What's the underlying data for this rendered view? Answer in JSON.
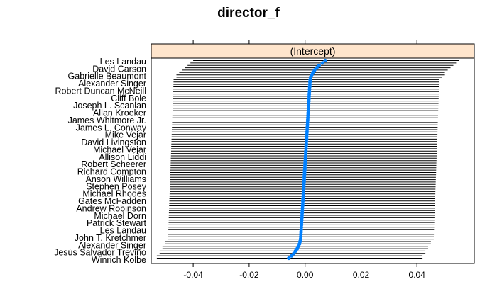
{
  "chart_data": {
    "type": "dotplot",
    "title": "director_f",
    "panel_label": "(Intercept)",
    "xlim": [
      -0.055,
      0.0605
    ],
    "xticks": [
      -0.04,
      -0.02,
      0.0,
      0.02,
      0.04
    ],
    "xtick_labels": [
      "-0.04",
      "-0.02",
      "0.00",
      "0.02",
      "0.04"
    ],
    "grid": false,
    "colors": {
      "point": "#0080ff",
      "interval": "#000000",
      "strip": "#ffe5cc",
      "frame": "#000000"
    },
    "visible_labels": [
      "Les Landau",
      "David Carson",
      "Gabrielle Beaumont",
      "Alexander Singer",
      "Robert Duncan McNeill",
      "Cliff Bole",
      "Joseph L. Scanlan",
      "Allan Kroeker",
      "James Whitmore Jr.",
      "James L. Conway",
      "Mike Vejar",
      "David Livingston",
      "Michael Vejar",
      "Allison Liddi",
      "Robert Scheerer",
      "Richard Compton",
      "Anson Williams",
      "Stephen Posey",
      "Michael Rhodes",
      "Gates McFadden",
      "Andrew Robinson",
      "Michael Dorn",
      "Patrick Stewart",
      "Les Landau",
      "John T. Kretchmer",
      "Alexander Singer",
      "Jesús Salvador Treviño",
      "Winrich Kolbe"
    ],
    "n_levels": 84,
    "estimates_first": [
      0.0072,
      0.0062,
      0.005,
      0.0042,
      0.0034,
      0.0028,
      0.0024,
      0.002
    ],
    "estimates_first_lower": [
      -0.04,
      -0.041,
      -0.042,
      -0.043,
      -0.044,
      -0.045,
      -0.046,
      -0.046
    ],
    "estimates_first_upper": [
      0.055,
      0.054,
      0.053,
      0.052,
      0.051,
      0.05,
      0.05,
      0.049
    ],
    "estimates_last": [
      -0.0018,
      -0.002,
      -0.0024,
      -0.0028,
      -0.0034,
      -0.004,
      -0.0048,
      -0.0058
    ],
    "estimates_last_lower": [
      -0.05,
      -0.05,
      -0.051,
      -0.051,
      -0.052,
      -0.052,
      -0.053,
      -0.053
    ],
    "estimates_last_upper": [
      0.045,
      0.045,
      0.044,
      0.044,
      0.043,
      0.043,
      0.042,
      0.042
    ],
    "estimates_middle_range": [
      0.0018,
      -0.0016
    ],
    "interval_middle_lower_range": [
      -0.047,
      -0.049
    ],
    "interval_middle_upper_range": [
      0.048,
      0.046
    ]
  }
}
